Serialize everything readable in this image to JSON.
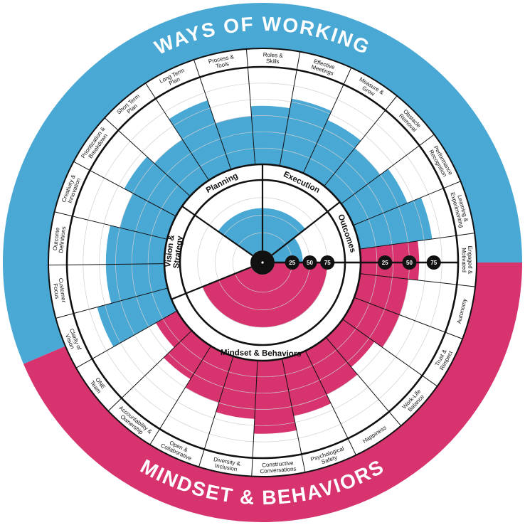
{
  "chart_data": {
    "type": "radial-bar",
    "title": "",
    "bands": [
      {
        "label": "WAYS OF WORKING",
        "color": "#4aa9d4"
      },
      {
        "label": "MINDSET & BEHAVIORS",
        "color": "#d6336f"
      }
    ],
    "scale": {
      "max": 100,
      "ticks": [
        25,
        50,
        75
      ]
    },
    "inner_groups": [
      {
        "label": "Vision & Strategy",
        "color": "#4aa9d4",
        "value": 0
      },
      {
        "label": "Planning",
        "color": "#4aa9d4",
        "value": 60
      },
      {
        "label": "Execution",
        "color": "#4aa9d4",
        "value": 60
      },
      {
        "label": "Outcomes",
        "color": "#4aa9d4",
        "value": 40
      },
      {
        "label": "Mindset & Behaviors",
        "color": "#d6336f",
        "value": 75
      }
    ],
    "segments": [
      {
        "label": "Clarity of Vision",
        "group": "Vision & Strategy",
        "color": "#4aa9d4",
        "value": 75
      },
      {
        "label": "Customer Focus",
        "group": "Vision & Strategy",
        "color": "#4aa9d4",
        "value": 60
      },
      {
        "label": "Outcome Definitions",
        "group": "Vision & Strategy",
        "color": "#4aa9d4",
        "value": 60
      },
      {
        "label": "Creativity & Innovation",
        "group": "Vision & Strategy",
        "color": "#4aa9d4",
        "value": 50
      },
      {
        "label": "Prioritization & Breakdown",
        "group": "Planning",
        "color": "#4aa9d4",
        "value": 60
      },
      {
        "label": "Short Term Plan",
        "group": "Planning",
        "color": "#4aa9d4",
        "value": 50
      },
      {
        "label": "Long Term Plan",
        "group": "Planning",
        "color": "#4aa9d4",
        "value": 75
      },
      {
        "label": "Process & Tools",
        "group": "Execution",
        "color": "#4aa9d4",
        "value": 50
      },
      {
        "label": "Roles & Skills",
        "group": "Execution",
        "color": "#4aa9d4",
        "value": 60
      },
      {
        "label": "Effective Meetings",
        "group": "Execution",
        "color": "#4aa9d4",
        "value": 70
      },
      {
        "label": "Measure & Grow",
        "group": "Execution",
        "color": "#4aa9d4",
        "value": 60
      },
      {
        "label": "Obstacle Removal",
        "group": "Outcomes",
        "color": "#4aa9d4",
        "value": 50
      },
      {
        "label": "Performance Recognition",
        "group": "Outcomes",
        "color": "#4aa9d4",
        "value": 60
      },
      {
        "label": "Learning & Experimenting",
        "group": "Outcomes",
        "color": "#4aa9d4",
        "value": 75
      },
      {
        "label": "Engaged & Motivated",
        "group": "Mindset & Behaviors",
        "color": "#d6336f",
        "value": 60
      },
      {
        "label": "Autonomy",
        "group": "Mindset & Behaviors",
        "color": "#d6336f",
        "value": 50
      },
      {
        "label": "Trust & Respect",
        "group": "Mindset & Behaviors",
        "color": "#d6336f",
        "value": 50
      },
      {
        "label": "Work-Life Balance",
        "group": "Mindset & Behaviors",
        "color": "#d6336f",
        "value": 40
      },
      {
        "label": "Happiness",
        "group": "Mindset & Behaviors",
        "color": "#d6336f",
        "value": 50
      },
      {
        "label": "Psychological Safety",
        "group": "Mindset & Behaviors",
        "color": "#d6336f",
        "value": 60
      },
      {
        "label": "Constructive Conversations",
        "group": "Mindset & Behaviors",
        "color": "#d6336f",
        "value": 75
      },
      {
        "label": "Diversity & Inclusion",
        "group": "Mindset & Behaviors",
        "color": "#d6336f",
        "value": 60
      },
      {
        "label": "Open & Collaborative",
        "group": "Mindset & Behaviors",
        "color": "#d6336f",
        "value": 50
      },
      {
        "label": "Accountability & Ownership",
        "group": "Mindset & Behaviors",
        "color": "#d6336f",
        "value": 40
      },
      {
        "label": "ONE Team",
        "group": "Mindset & Behaviors",
        "color": "#d6336f",
        "value": 25
      }
    ]
  }
}
